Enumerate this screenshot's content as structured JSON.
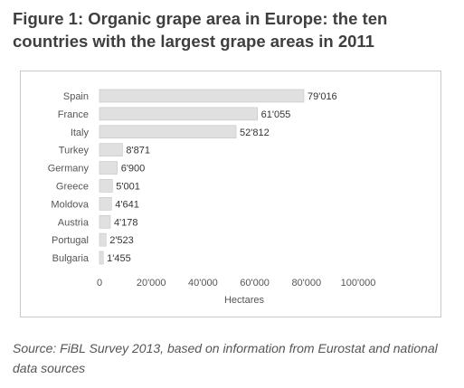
{
  "figure_title": "Figure 1: Organic grape area in Europe: the ten countries with the largest grape areas in 2011",
  "source_note": "Source: FiBL Survey 2013, based on information from Eurostat and national data sources",
  "chart_data": {
    "type": "bar",
    "orientation": "horizontal",
    "categories": [
      "Spain",
      "France",
      "Italy",
      "Turkey",
      "Germany",
      "Greece",
      "Moldova",
      "Austria",
      "Portugal",
      "Bulgaria"
    ],
    "values": [
      79016,
      61055,
      52812,
      8871,
      6900,
      5001,
      4641,
      4178,
      2523,
      1455
    ],
    "value_labels": [
      "79'016",
      "61'055",
      "52'812",
      "8'871",
      "6'900",
      "5'001",
      "4'641",
      "4'178",
      "2'523",
      "1'455"
    ],
    "xlabel": "Hectares",
    "xlim": [
      0,
      100000
    ],
    "xticks": [
      0,
      20000,
      40000,
      60000,
      80000,
      100000
    ],
    "xtick_labels": [
      "0",
      "20'000",
      "40'000",
      "60'000",
      "80'000",
      "100'000"
    ],
    "grid": false,
    "legend": "none",
    "bar_color": "#e0e0e0",
    "bar_border_color": "#c4c4c4"
  }
}
